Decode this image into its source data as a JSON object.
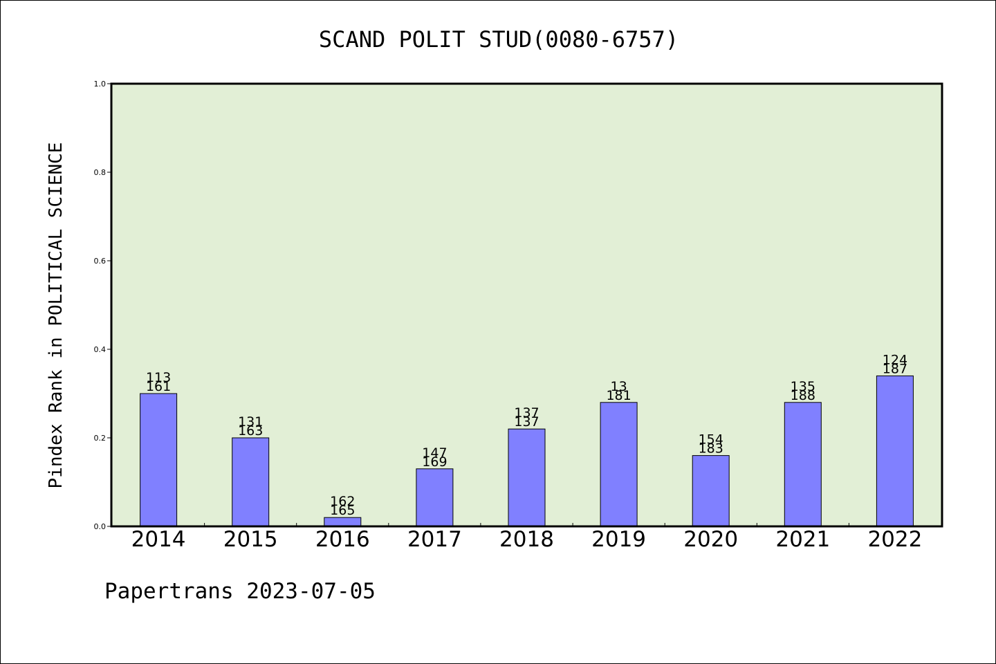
{
  "chart_data": {
    "type": "bar",
    "title": "SCAND POLIT STUD(0080-6757)",
    "xlabel": "",
    "ylabel": "Pindex Rank in POLITICAL SCIENCE",
    "ylim": [
      0.0,
      1.0
    ],
    "yticks": [
      "0.0",
      "0.2",
      "0.4",
      "0.6",
      "0.8",
      "1.0"
    ],
    "categories": [
      "2014",
      "2015",
      "2016",
      "2017",
      "2018",
      "2019",
      "2020",
      "2021",
      "2022"
    ],
    "values": [
      0.3,
      0.2,
      0.02,
      0.13,
      0.22,
      0.28,
      0.16,
      0.28,
      0.34
    ],
    "labels_top": [
      "113",
      "131",
      "162",
      "147",
      "137",
      "13",
      "154",
      "135",
      "124"
    ],
    "labels_bottom": [
      "161",
      "163",
      "165",
      "169",
      "137",
      "181",
      "183",
      "188",
      "187"
    ],
    "grid": false,
    "legend": "none",
    "colors": {
      "bar": "#8080ff",
      "plot_background": "#e2efd6",
      "axis": "#000000"
    }
  },
  "footer": "Papertrans 2023-07-05"
}
